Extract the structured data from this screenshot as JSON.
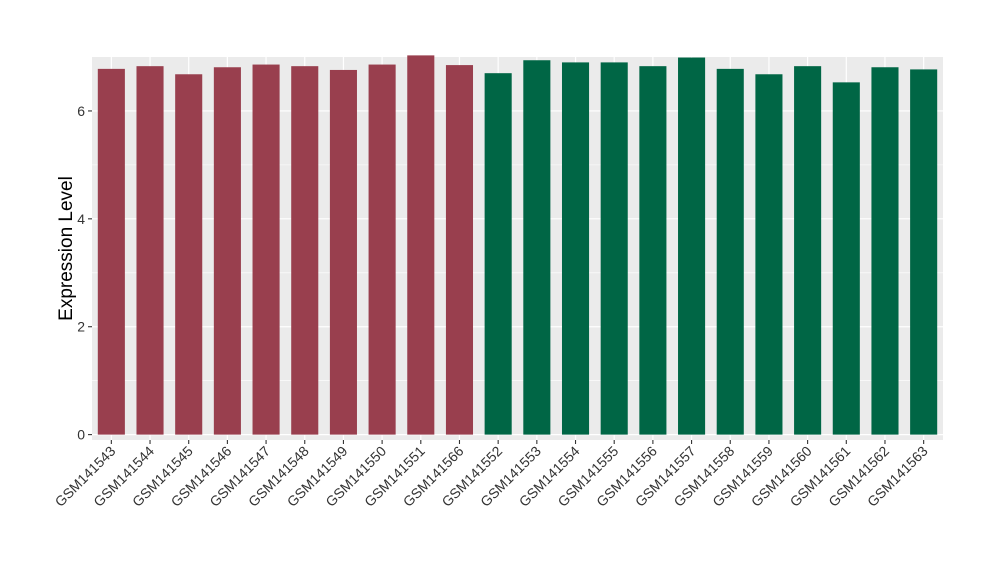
{
  "chart_data": {
    "type": "bar",
    "ylabel": "Expression Level",
    "xlabel": "",
    "ylim": [
      -0.1,
      7.0
    ],
    "yticks": [
      0,
      2,
      4,
      6
    ],
    "categories": [
      "GSM141543",
      "GSM141544",
      "GSM141545",
      "GSM141546",
      "GSM141547",
      "GSM141548",
      "GSM141549",
      "GSM141550",
      "GSM141551",
      "GSM141566",
      "GSM141552",
      "GSM141553",
      "GSM141554",
      "GSM141555",
      "GSM141556",
      "GSM141557",
      "GSM141558",
      "GSM141559",
      "GSM141560",
      "GSM141561",
      "GSM141562",
      "GSM141563"
    ],
    "values": [
      6.78,
      6.83,
      6.68,
      6.81,
      6.86,
      6.83,
      6.76,
      6.86,
      7.03,
      6.85,
      6.7,
      6.94,
      6.9,
      6.9,
      6.83,
      6.99,
      6.78,
      6.68,
      6.83,
      6.53,
      6.81,
      6.77
    ],
    "bar_colors": [
      "#993F4E",
      "#993F4E",
      "#993F4E",
      "#993F4E",
      "#993F4E",
      "#993F4E",
      "#993F4E",
      "#993F4E",
      "#993F4E",
      "#993F4E",
      "#006645",
      "#006645",
      "#006645",
      "#006645",
      "#006645",
      "#006645",
      "#006645",
      "#006645",
      "#006645",
      "#006645",
      "#006645",
      "#006645"
    ],
    "grid": true,
    "panel_background": "#EBEBEB",
    "grid_color": "#FFFFFF"
  }
}
